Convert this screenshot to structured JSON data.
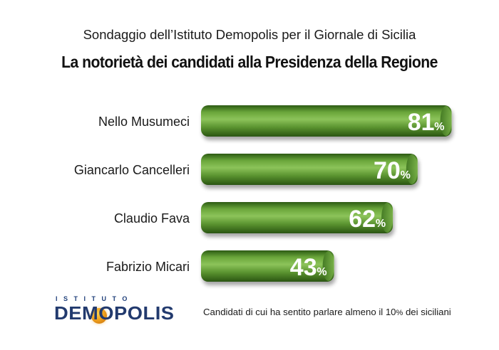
{
  "header": {
    "subtitle": "Sondaggio dell’Istituto Demopolis per il Giornale di Sicilia",
    "title": "La notorietà dei candidati alla Presidenza della Regione"
  },
  "chart_data": {
    "type": "bar",
    "orientation": "horizontal",
    "categories": [
      "Nello Musumeci",
      "Giancarlo Cancelleri",
      "Claudio Fava",
      "Fabrizio Micari"
    ],
    "values": [
      81,
      70,
      62,
      43
    ],
    "data_labels": [
      "81",
      "70",
      "62",
      "43"
    ],
    "unit": "%",
    "title": "La notorietà dei candidati alla Presidenza della Regione",
    "xlabel": "",
    "ylabel": "",
    "xlim": [
      0,
      100
    ],
    "grid": false,
    "bar_color": "#4e8a2a",
    "label_color": "#ffffff"
  },
  "footer": {
    "logo_top": "ISTITUTO",
    "logo_word": "DEMOPOLIS",
    "note_before": "Candidati di cui ha sentito parlare almeno il 10",
    "note_pct": "%",
    "note_after": " dei siciliani"
  }
}
